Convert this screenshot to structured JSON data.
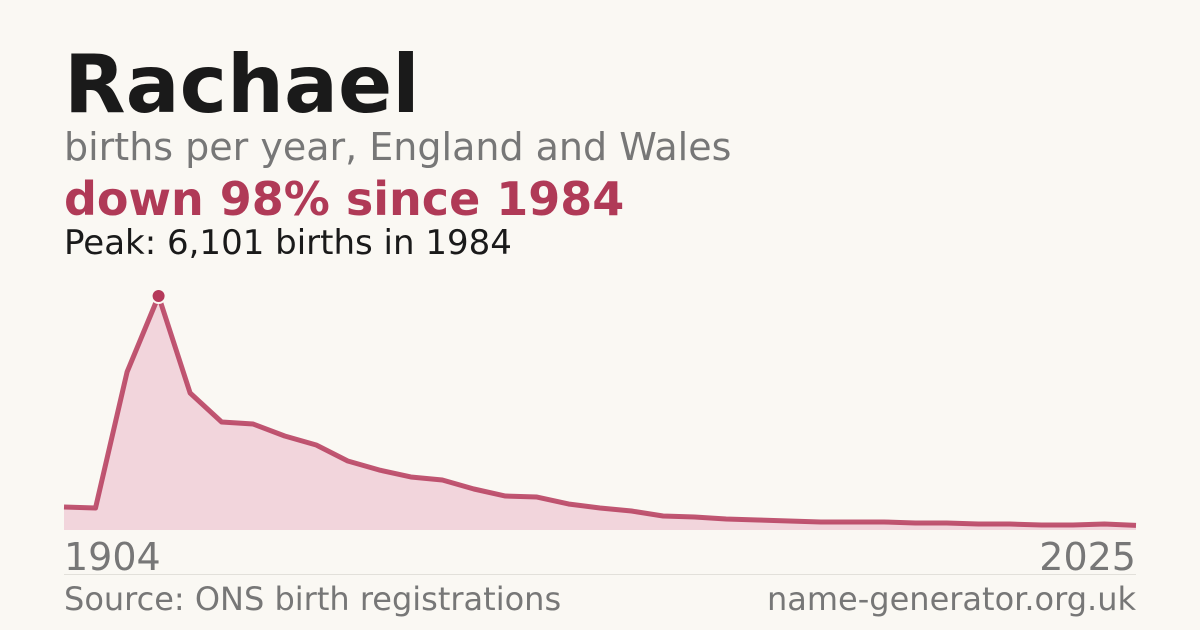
{
  "chart_data": {
    "type": "area",
    "title": "Rachael",
    "subtitle": "births per year, England and Wales",
    "headline": "down 98% since 1984",
    "annotation": "Peak: 6,101 births in 1984",
    "source": "Source: ONS birth registrations",
    "site": "name-generator.org.uk",
    "color": "#b5395a",
    "fill": "#f2d5dc",
    "categories": [
      "1904",
      null,
      null,
      null,
      null,
      null,
      null,
      null,
      null,
      null,
      null,
      null,
      null,
      null,
      null,
      null,
      null,
      null,
      null,
      null,
      null,
      null,
      null,
      null,
      null,
      null,
      null,
      null,
      null,
      null,
      null,
      null,
      null,
      null,
      "2025"
    ],
    "values": [
      600,
      574,
      4119,
      6101,
      3572,
      2816,
      2763,
      2451,
      2216,
      1799,
      1564,
      1382,
      1304,
      1069,
      886,
      860,
      678,
      574,
      495,
      365,
      339,
      287,
      261,
      235,
      209,
      209,
      209,
      183,
      183,
      156,
      156,
      130,
      130,
      156,
      122
    ]
  }
}
